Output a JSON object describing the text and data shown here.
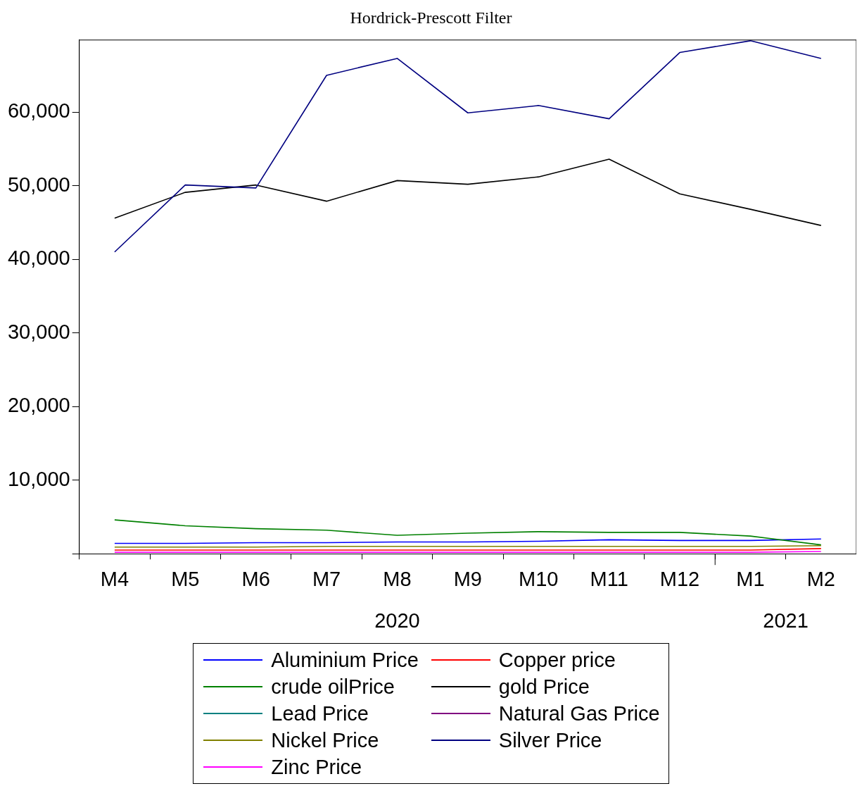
{
  "chart_data": {
    "type": "line",
    "title": "Hordrick-Prescott Filter",
    "categories": [
      "M4",
      "M5",
      "M6",
      "M7",
      "M8",
      "M9",
      "M10",
      "M11",
      "M12",
      "M1",
      "M2"
    ],
    "annotations": [
      "2020",
      "2021"
    ],
    "ylim": [
      0,
      69800
    ],
    "yticks": [
      {
        "value": 0,
        "label": null
      },
      {
        "value": 10000,
        "label": "10,000"
      },
      {
        "value": 20000,
        "label": "20,000"
      },
      {
        "value": 30000,
        "label": "30,000"
      },
      {
        "value": 40000,
        "label": "40,000"
      },
      {
        "value": 50000,
        "label": "50,000"
      },
      {
        "value": 60000,
        "label": "60,000"
      }
    ],
    "grid": false,
    "legend": "bottom",
    "line_style": "solid",
    "marker": "none",
    "series": [
      {
        "name": "Aluminium Price",
        "color": "#0000ff",
        "values": [
          1400,
          1400,
          1500,
          1500,
          1600,
          1600,
          1700,
          1900,
          1800,
          1800,
          2000
        ]
      },
      {
        "name": "Copper price",
        "color": "#ff0000",
        "values": [
          500,
          500,
          500,
          500,
          500,
          500,
          500,
          500,
          500,
          500,
          700
        ]
      },
      {
        "name": "crude oilPrice",
        "color": "#008000",
        "values": [
          4600,
          3800,
          3400,
          3200,
          2500,
          2800,
          3000,
          2900,
          2900,
          2400,
          1200
        ]
      },
      {
        "name": "gold Price",
        "color": "#000000",
        "values": [
          45600,
          49100,
          50100,
          47900,
          50700,
          50200,
          51200,
          53600,
          48900,
          46800,
          44600
        ]
      },
      {
        "name": "Lead Price",
        "color": "#008080",
        "values": [
          null,
          null,
          null,
          null,
          null,
          null,
          null,
          null,
          null,
          null,
          null
        ]
      },
      {
        "name": "Natural Gas Price",
        "color": "#800080",
        "values": [
          null,
          null,
          null,
          null,
          null,
          null,
          null,
          null,
          null,
          null,
          null
        ]
      },
      {
        "name": "Nickel Price",
        "color": "#808000",
        "values": [
          900,
          900,
          900,
          1000,
          1000,
          1000,
          1000,
          1000,
          1000,
          1000,
          1100
        ]
      },
      {
        "name": "Silver Price",
        "color": "#000080",
        "values": [
          41000,
          50100,
          49700,
          65000,
          67300,
          59900,
          60900,
          59100,
          68100,
          69700,
          67300
        ]
      },
      {
        "name": "Zinc Price",
        "color": "#ff00ff",
        "values": [
          200,
          200,
          200,
          200,
          200,
          200,
          200,
          200,
          200,
          200,
          300
        ]
      }
    ]
  }
}
